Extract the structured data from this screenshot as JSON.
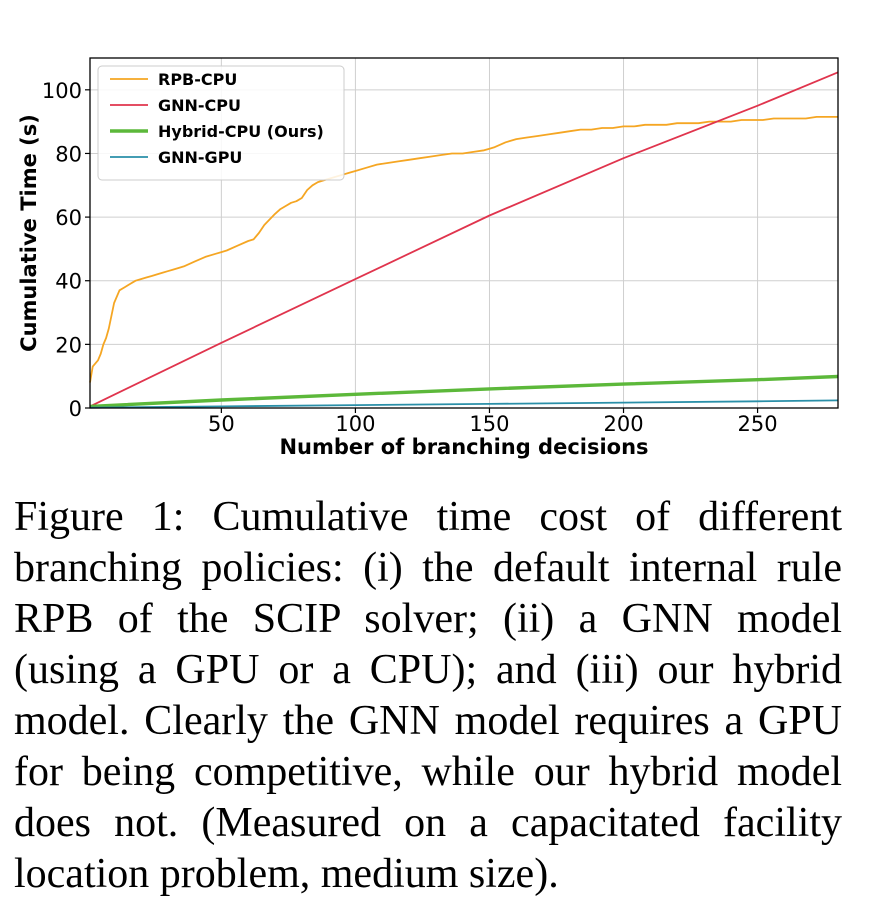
{
  "chart_data": {
    "type": "line",
    "xlabel": "Number of branching decisions",
    "ylabel": "Cumulative Time (s)",
    "xlim": [
      1,
      280
    ],
    "ylim": [
      0,
      110
    ],
    "xticks": [
      50,
      100,
      150,
      200,
      250
    ],
    "yticks": [
      0,
      20,
      40,
      60,
      80,
      100
    ],
    "grid": true,
    "legend_position": "top-left",
    "series": [
      {
        "name": "RPB-CPU",
        "color": "#f5a623",
        "x": [
          1,
          2,
          4,
          5,
          6,
          7,
          8,
          10,
          12,
          14,
          16,
          18,
          20,
          22,
          24,
          26,
          28,
          30,
          32,
          34,
          36,
          40,
          44,
          48,
          50,
          52,
          56,
          60,
          62,
          64,
          66,
          70,
          72,
          74,
          76,
          78,
          80,
          82,
          84,
          86,
          88,
          90,
          94,
          98,
          100,
          104,
          108,
          112,
          116,
          120,
          124,
          128,
          132,
          136,
          140,
          144,
          148,
          150,
          152,
          156,
          160,
          164,
          168,
          172,
          176,
          180,
          184,
          188,
          192,
          196,
          200,
          204,
          208,
          212,
          216,
          220,
          224,
          228,
          232,
          236,
          240,
          244,
          248,
          252,
          256,
          260,
          264,
          268,
          272,
          276,
          280
        ],
        "y": [
          8,
          13,
          15,
          17,
          20,
          22,
          25,
          33,
          37,
          38,
          39,
          40,
          40.5,
          41,
          41.5,
          42,
          42.5,
          43,
          43.5,
          44,
          44.5,
          46,
          47.5,
          48.5,
          49,
          49.5,
          51,
          52.5,
          53,
          55,
          57.5,
          61,
          62.5,
          63.5,
          64.5,
          65,
          66,
          68.5,
          70,
          71,
          71.5,
          72,
          73,
          74,
          74.5,
          75.5,
          76.5,
          77,
          77.5,
          78,
          78.5,
          79,
          79.5,
          80,
          80,
          80.5,
          81,
          81.5,
          82,
          83.5,
          84.5,
          85,
          85.5,
          86,
          86.5,
          87,
          87.5,
          87.5,
          88,
          88,
          88.5,
          88.5,
          89,
          89,
          89,
          89.5,
          89.5,
          89.5,
          90,
          90,
          90,
          90.5,
          90.5,
          90.5,
          91,
          91,
          91,
          91,
          91.5,
          91.5,
          91.5
        ]
      },
      {
        "name": "GNN-CPU",
        "color": "#e0344d",
        "x": [
          1,
          50,
          100,
          150,
          200,
          250,
          280
        ],
        "y": [
          0.5,
          20.5,
          40.5,
          60.5,
          78.5,
          95,
          105.5
        ]
      },
      {
        "name": "Hybrid-CPU (Ours)",
        "color": "#5cb83a",
        "x": [
          1,
          50,
          100,
          150,
          200,
          250,
          280
        ],
        "y": [
          0.5,
          2.5,
          4.3,
          6.0,
          7.5,
          8.9,
          9.9
        ]
      },
      {
        "name": "GNN-GPU",
        "color": "#2a8fa8",
        "x": [
          1,
          50,
          100,
          150,
          200,
          250,
          280
        ],
        "y": [
          0.1,
          0.5,
          0.9,
          1.3,
          1.7,
          2.1,
          2.4
        ]
      }
    ]
  },
  "caption": "Figure 1: Cumulative time cost of different branching policies: (i) the default internal rule RPB of the SCIP solver; (ii) a GNN model (using a GPU or a CPU); and (iii) our hybrid model. Clearly the GNN model requires a GPU for being competitive, while our hybrid model does not. (Measured on a capacitated facility location problem, medium size)."
}
